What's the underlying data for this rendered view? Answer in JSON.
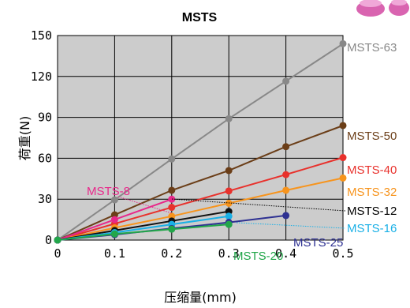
{
  "chart_data": {
    "type": "line",
    "title": "MSTS",
    "xlabel": "压缩量(mm)",
    "ylabel": "荷重(N)",
    "xlim": [
      0,
      0.5
    ],
    "ylim": [
      0,
      150
    ],
    "xticks": [
      "0",
      "0.1",
      "0.2",
      "0.3",
      "0.4",
      "0.5"
    ],
    "yticks": [
      "0",
      "30",
      "60",
      "90",
      "120",
      "150"
    ],
    "grid": true,
    "plot_background": "#cccccc",
    "series": [
      {
        "name": "MSTS-63",
        "color": "#888888",
        "x": [
          0,
          0.1,
          0.2,
          0.3,
          0.4,
          0.5
        ],
        "y": [
          0,
          29.5,
          59.5,
          89,
          116.5,
          144
        ]
      },
      {
        "name": "MSTS-50",
        "color": "#6b3e18",
        "x": [
          0,
          0.1,
          0.2,
          0.3,
          0.4,
          0.5
        ],
        "y": [
          0,
          18.5,
          36.5,
          51,
          68.5,
          84
        ]
      },
      {
        "name": "MSTS-40",
        "color": "#e8312c",
        "x": [
          0,
          0.1,
          0.2,
          0.3,
          0.4,
          0.5
        ],
        "y": [
          0,
          12,
          24,
          36,
          48,
          60.5
        ]
      },
      {
        "name": "MSTS-32",
        "color": "#f7941d",
        "x": [
          0,
          0.1,
          0.2,
          0.3,
          0.4,
          0.5
        ],
        "y": [
          0,
          9,
          17.5,
          27,
          36.5,
          45.5
        ]
      },
      {
        "name": "MSTS-8",
        "color": "#e8288a",
        "x": [
          0,
          0.1,
          0.2
        ],
        "y": [
          0,
          15,
          30
        ]
      },
      {
        "name": "MSTS-12",
        "color": "#111111",
        "x": [
          0,
          0.1,
          0.2,
          0.3
        ],
        "y": [
          0,
          7,
          14,
          21
        ]
      },
      {
        "name": "MSTS-16",
        "color": "#1ab0e6",
        "x": [
          0,
          0.1,
          0.2,
          0.3
        ],
        "y": [
          0,
          5.5,
          11.5,
          17.5
        ]
      },
      {
        "name": "MSTS-25",
        "color": "#2e3192",
        "x": [
          0,
          0.1,
          0.2,
          0.3,
          0.4
        ],
        "y": [
          0,
          4,
          8.5,
          13,
          18
        ]
      },
      {
        "name": "MSTS-20",
        "color": "#22a64a",
        "x": [
          0,
          0.1,
          0.2,
          0.3
        ],
        "y": [
          0,
          4.5,
          8,
          11.5
        ]
      }
    ]
  }
}
